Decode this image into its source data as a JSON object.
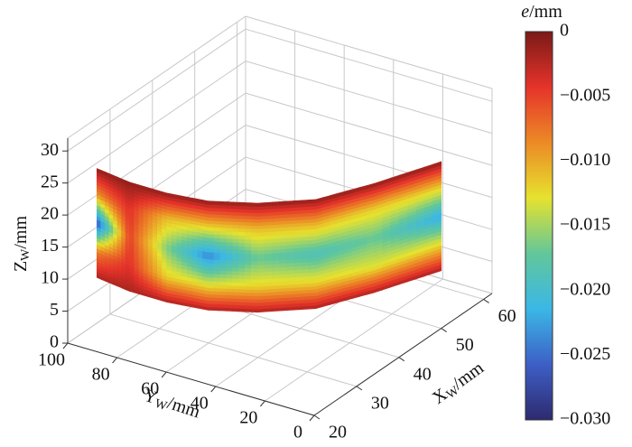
{
  "chart_data": {
    "type": "surface3d",
    "xlabel": [
      "X",
      "W",
      "/mm"
    ],
    "ylabel": [
      "Y",
      "W",
      "/mm"
    ],
    "zlabel": [
      "Z",
      "W",
      "/mm"
    ],
    "colorbar_label": [
      "e",
      "/mm"
    ],
    "xlim": [
      20,
      62
    ],
    "xticks": [
      20,
      30,
      40,
      50,
      60
    ],
    "ylim": [
      0,
      100
    ],
    "yticks": [
      0,
      20,
      40,
      60,
      80,
      100
    ],
    "zlim": [
      0,
      32
    ],
    "zticks": [
      0,
      5,
      10,
      15,
      20,
      25,
      30
    ],
    "clim": [
      -0.03,
      0
    ],
    "cticks": [
      0,
      {
        "value": -0.005,
        "label": "−0.005"
      },
      {
        "value": -0.01,
        "label": "−0.010"
      },
      {
        "value": -0.015,
        "label": "−0.015"
      },
      {
        "value": -0.02,
        "label": "−0.020"
      },
      {
        "value": -0.025,
        "label": "−0.025"
      },
      {
        "value": -0.03,
        "label": "−0.030"
      }
    ],
    "colormap": [
      "#2e2a6e",
      "#3d5fc6",
      "#3bb7e6",
      "#62c79a",
      "#e6e22e",
      "#ec8a26",
      "#e5332a",
      "#7a1a17"
    ],
    "grid": true,
    "surface": {
      "y": [
        95,
        80,
        65,
        50,
        35,
        20,
        10,
        0
      ],
      "x": [
        24,
        23,
        23,
        24,
        27,
        32,
        40,
        50
      ],
      "z": [
        9,
        13,
        17.5,
        22,
        26
      ],
      "e": [
        [
          -0.002,
          -0.002,
          -0.002,
          -0.002,
          -0.002,
          -0.002,
          -0.002,
          -0.002
        ],
        [
          -0.008,
          -0.004,
          -0.012,
          -0.013,
          -0.012,
          -0.012,
          -0.013,
          -0.012
        ],
        [
          -0.027,
          -0.005,
          -0.016,
          -0.024,
          -0.017,
          -0.019,
          -0.017,
          -0.022
        ],
        [
          -0.009,
          -0.004,
          -0.011,
          -0.012,
          -0.011,
          -0.011,
          -0.012,
          -0.012
        ],
        [
          -0.001,
          -0.001,
          -0.001,
          -0.001,
          -0.001,
          -0.001,
          -0.001,
          -0.001
        ]
      ]
    }
  }
}
